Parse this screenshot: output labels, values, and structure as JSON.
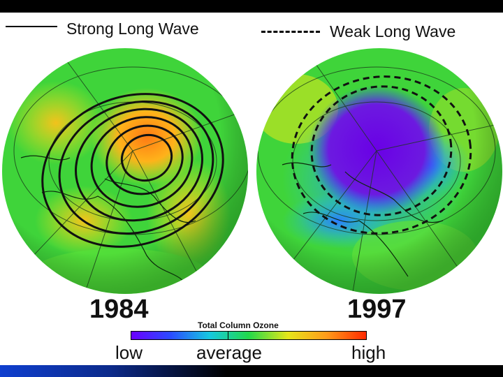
{
  "legend": {
    "strong_label": "Strong Long Wave",
    "weak_label": "Weak Long Wave"
  },
  "panels": [
    {
      "year": "1984"
    },
    {
      "year": "1997"
    }
  ],
  "scale": {
    "title": "Total Column Ozone",
    "low": "low",
    "average": "average",
    "high": "high",
    "colors": [
      "#6a00ff",
      "#2b4bff",
      "#16c8e0",
      "#22d94a",
      "#e6e61a",
      "#ff9a1a",
      "#ff2a00"
    ]
  }
}
